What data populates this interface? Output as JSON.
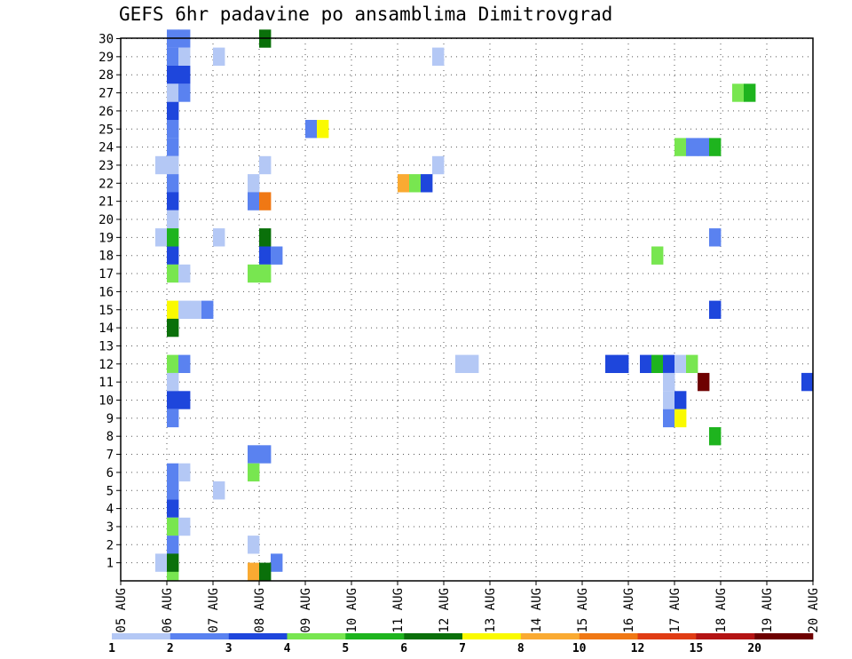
{
  "chart_data": {
    "type": "heatmap",
    "title": "GEFS 6hr padavine po ansamblima Dimitrovgrad",
    "xlabel": "",
    "ylabel": "",
    "x_tick_labels": [
      "05 AUG",
      "06 AUG",
      "07 AUG",
      "08 AUG",
      "09 AUG",
      "10 AUG",
      "11 AUG",
      "12 AUG",
      "13 AUG",
      "14 AUG",
      "15 AUG",
      "16 AUG",
      "17 AUG",
      "18 AUG",
      "19 AUG",
      "20 AUG"
    ],
    "y_tick_labels": [
      "1",
      "2",
      "3",
      "4",
      "5",
      "6",
      "7",
      "8",
      "9",
      "10",
      "11",
      "12",
      "13",
      "14",
      "15",
      "16",
      "17",
      "18",
      "19",
      "20",
      "21",
      "22",
      "23",
      "24",
      "25",
      "26",
      "27",
      "28",
      "29",
      "30"
    ],
    "time_step_hours": 6,
    "x_range": [
      0,
      60
    ],
    "y_range": [
      0,
      30
    ],
    "grid": true,
    "colorbar": {
      "labels": [
        "1",
        "2",
        "3",
        "4",
        "5",
        "6",
        "7",
        "8",
        "10",
        "12",
        "15",
        "20"
      ],
      "colors": [
        "#b4c8f5",
        "#5a82f0",
        "#1e46dc",
        "#78e650",
        "#1eb41e",
        "#0a700a",
        "#fafa00",
        "#faaa32",
        "#f07814",
        "#e03c14",
        "#b41414",
        "#6e0000"
      ]
    },
    "cells": [
      {
        "x": 4,
        "y": 0.5,
        "level": 3
      },
      {
        "x": 4,
        "y": 30,
        "level": 1
      },
      {
        "x": 5,
        "y": 30,
        "level": 1
      },
      {
        "x": 4,
        "y": 29,
        "level": 1
      },
      {
        "x": 5,
        "y": 29,
        "level": 0
      },
      {
        "x": 8,
        "y": 29,
        "level": 0
      },
      {
        "x": 27,
        "y": 29,
        "level": 0
      },
      {
        "x": 4,
        "y": 28,
        "level": 2
      },
      {
        "x": 5,
        "y": 28,
        "level": 2
      },
      {
        "x": 4,
        "y": 27,
        "level": 0
      },
      {
        "x": 5,
        "y": 27,
        "level": 1
      },
      {
        "x": 53,
        "y": 27,
        "level": 3
      },
      {
        "x": 54,
        "y": 27,
        "level": 4
      },
      {
        "x": 4,
        "y": 26,
        "level": 2
      },
      {
        "x": 4,
        "y": 25,
        "level": 1
      },
      {
        "x": 16,
        "y": 25,
        "level": 1
      },
      {
        "x": 17,
        "y": 25,
        "level": 6
      },
      {
        "x": 4,
        "y": 24,
        "level": 1
      },
      {
        "x": 48,
        "y": 24,
        "level": 3
      },
      {
        "x": 49,
        "y": 24,
        "level": 1
      },
      {
        "x": 50,
        "y": 24,
        "level": 1
      },
      {
        "x": 51,
        "y": 24,
        "level": 4
      },
      {
        "x": 3,
        "y": 23,
        "level": 0
      },
      {
        "x": 4,
        "y": 23,
        "level": 0
      },
      {
        "x": 12,
        "y": 23,
        "level": 0
      },
      {
        "x": 27,
        "y": 23,
        "level": 0
      },
      {
        "x": 4,
        "y": 22,
        "level": 1
      },
      {
        "x": 11,
        "y": 22,
        "level": 0
      },
      {
        "x": 24,
        "y": 22,
        "level": 7
      },
      {
        "x": 25,
        "y": 22,
        "level": 3
      },
      {
        "x": 26,
        "y": 22,
        "level": 2
      },
      {
        "x": 4,
        "y": 21,
        "level": 2
      },
      {
        "x": 11,
        "y": 21,
        "level": 1
      },
      {
        "x": 12,
        "y": 21,
        "level": 8
      },
      {
        "x": 4,
        "y": 20,
        "level": 0
      },
      {
        "x": 3,
        "y": 19,
        "level": 0
      },
      {
        "x": 4,
        "y": 19,
        "level": 4
      },
      {
        "x": 8,
        "y": 19,
        "level": 0
      },
      {
        "x": 12,
        "y": 19,
        "level": 5
      },
      {
        "x": 51,
        "y": 19,
        "level": 1
      },
      {
        "x": 4,
        "y": 18,
        "level": 2
      },
      {
        "x": 12,
        "y": 18,
        "level": 2
      },
      {
        "x": 13,
        "y": 18,
        "level": 1
      },
      {
        "x": 46,
        "y": 18,
        "level": 3
      },
      {
        "x": 4,
        "y": 17,
        "level": 3
      },
      {
        "x": 5,
        "y": 17,
        "level": 0
      },
      {
        "x": 11,
        "y": 17,
        "level": 3
      },
      {
        "x": 12,
        "y": 17,
        "level": 3
      },
      {
        "x": 4,
        "y": 15,
        "level": 6
      },
      {
        "x": 5,
        "y": 15,
        "level": 0
      },
      {
        "x": 6,
        "y": 15,
        "level": 0
      },
      {
        "x": 7,
        "y": 15,
        "level": 1
      },
      {
        "x": 51,
        "y": 15,
        "level": 2
      },
      {
        "x": 4,
        "y": 14,
        "level": 5
      },
      {
        "x": 4,
        "y": 12,
        "level": 3
      },
      {
        "x": 5,
        "y": 12,
        "level": 1
      },
      {
        "x": 29,
        "y": 12,
        "level": 0
      },
      {
        "x": 30,
        "y": 12,
        "level": 0
      },
      {
        "x": 42,
        "y": 12,
        "level": 2
      },
      {
        "x": 43,
        "y": 12,
        "level": 2
      },
      {
        "x": 45,
        "y": 12,
        "level": 2
      },
      {
        "x": 46,
        "y": 12,
        "level": 4
      },
      {
        "x": 47,
        "y": 12,
        "level": 2
      },
      {
        "x": 48,
        "y": 12,
        "level": 0
      },
      {
        "x": 49,
        "y": 12,
        "level": 3
      },
      {
        "x": 4,
        "y": 11,
        "level": 0
      },
      {
        "x": 47,
        "y": 11,
        "level": 0
      },
      {
        "x": 50,
        "y": 11,
        "level": 11
      },
      {
        "x": 59,
        "y": 11,
        "level": 2
      },
      {
        "x": 4,
        "y": 10,
        "level": 2
      },
      {
        "x": 5,
        "y": 10,
        "level": 2
      },
      {
        "x": 47,
        "y": 10,
        "level": 0
      },
      {
        "x": 48,
        "y": 10,
        "level": 2
      },
      {
        "x": 4,
        "y": 9,
        "level": 1
      },
      {
        "x": 47,
        "y": 9,
        "level": 1
      },
      {
        "x": 48,
        "y": 9,
        "level": 6
      },
      {
        "x": 51,
        "y": 8,
        "level": 4
      },
      {
        "x": 11,
        "y": 7,
        "level": 1
      },
      {
        "x": 12,
        "y": 7,
        "level": 1
      },
      {
        "x": 4,
        "y": 6,
        "level": 1
      },
      {
        "x": 5,
        "y": 6,
        "level": 0
      },
      {
        "x": 11,
        "y": 6,
        "level": 3
      },
      {
        "x": 4,
        "y": 5,
        "level": 1
      },
      {
        "x": 8,
        "y": 5,
        "level": 0
      },
      {
        "x": 4,
        "y": 4,
        "level": 2
      },
      {
        "x": 4,
        "y": 3,
        "level": 3
      },
      {
        "x": 5,
        "y": 3,
        "level": 0
      },
      {
        "x": 4,
        "y": 2,
        "level": 1
      },
      {
        "x": 11,
        "y": 2,
        "level": 0
      },
      {
        "x": 3,
        "y": 1,
        "level": 0
      },
      {
        "x": 4,
        "y": 1,
        "level": 5
      },
      {
        "x": 13,
        "y": 1,
        "level": 1
      },
      {
        "x": 11,
        "y": 0.5,
        "level": 7
      },
      {
        "x": 12,
        "y": 0.5,
        "level": 5
      },
      {
        "x": 12,
        "y": 30,
        "level": 5
      }
    ]
  }
}
